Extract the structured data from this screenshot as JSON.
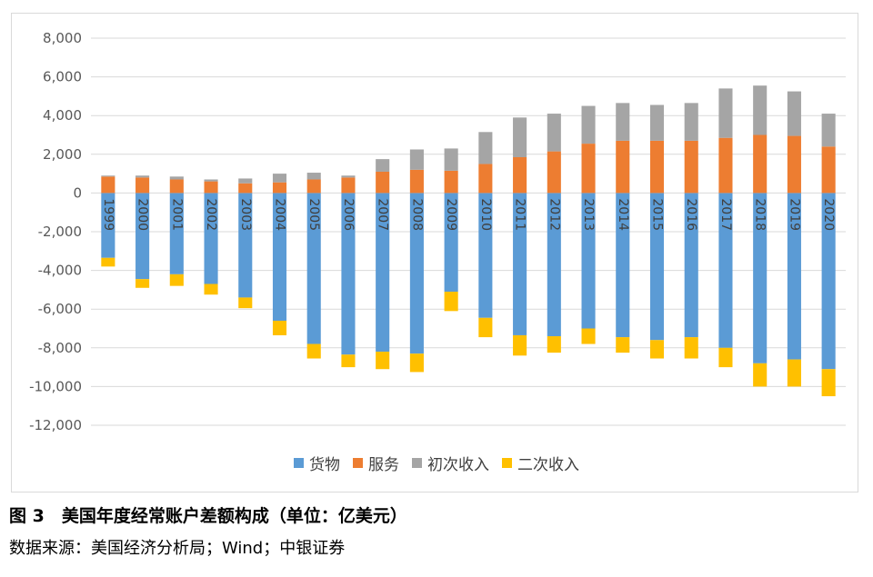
{
  "chart_data": {
    "type": "bar",
    "stacked": true,
    "categories": [
      "1999",
      "2000",
      "2001",
      "2002",
      "2003",
      "2004",
      "2005",
      "2006",
      "2007",
      "2008",
      "2009",
      "2010",
      "2011",
      "2012",
      "2013",
      "2014",
      "2015",
      "2016",
      "2017",
      "2018",
      "2019",
      "2020"
    ],
    "series": [
      {
        "name": "货物",
        "color": "#5b9bd5",
        "values": [
          -3350,
          -4450,
          -4200,
          -4700,
          -5400,
          -6600,
          -7800,
          -8350,
          -8200,
          -8300,
          -5100,
          -6450,
          -7350,
          -7400,
          -7000,
          -7450,
          -7600,
          -7450,
          -8000,
          -8800,
          -8600,
          -9100
        ]
      },
      {
        "name": "服务",
        "color": "#ed7d31",
        "values": [
          850,
          800,
          700,
          600,
          500,
          550,
          700,
          800,
          1100,
          1200,
          1150,
          1500,
          1850,
          2150,
          2550,
          2700,
          2700,
          2700,
          2850,
          3000,
          2950,
          2400
        ]
      },
      {
        "name": "初次收入",
        "color": "#a5a5a5",
        "values": [
          50,
          100,
          150,
          100,
          250,
          450,
          350,
          100,
          650,
          1050,
          1150,
          1650,
          2050,
          1950,
          1950,
          1950,
          1850,
          1950,
          2550,
          2550,
          2300,
          1700
        ]
      },
      {
        "name": "二次收入",
        "color": "#ffc000",
        "values": [
          -450,
          -450,
          -600,
          -550,
          -550,
          -750,
          -750,
          -650,
          -900,
          -950,
          -1000,
          -1000,
          -1050,
          -850,
          -800,
          -800,
          -950,
          -1100,
          -1000,
          -1200,
          -1400,
          -1400
        ]
      }
    ],
    "ylim": [
      -12000,
      8000
    ],
    "yticks": [
      "8,000",
      "6,000",
      "4,000",
      "2,000",
      "0",
      "-2,000",
      "-4,000",
      "-6,000",
      "-8,000",
      "-10,000",
      "-12,000"
    ],
    "ytick_values": [
      8000,
      6000,
      4000,
      2000,
      0,
      -2000,
      -4000,
      -6000,
      -8000,
      -10000,
      -12000
    ],
    "grid": true,
    "legend_position": "bottom"
  },
  "caption": {
    "title": "图 3　美国年度经常账户差额构成（单位：亿美元）",
    "source": "数据来源：美国经济分析局；Wind；中银证券"
  }
}
